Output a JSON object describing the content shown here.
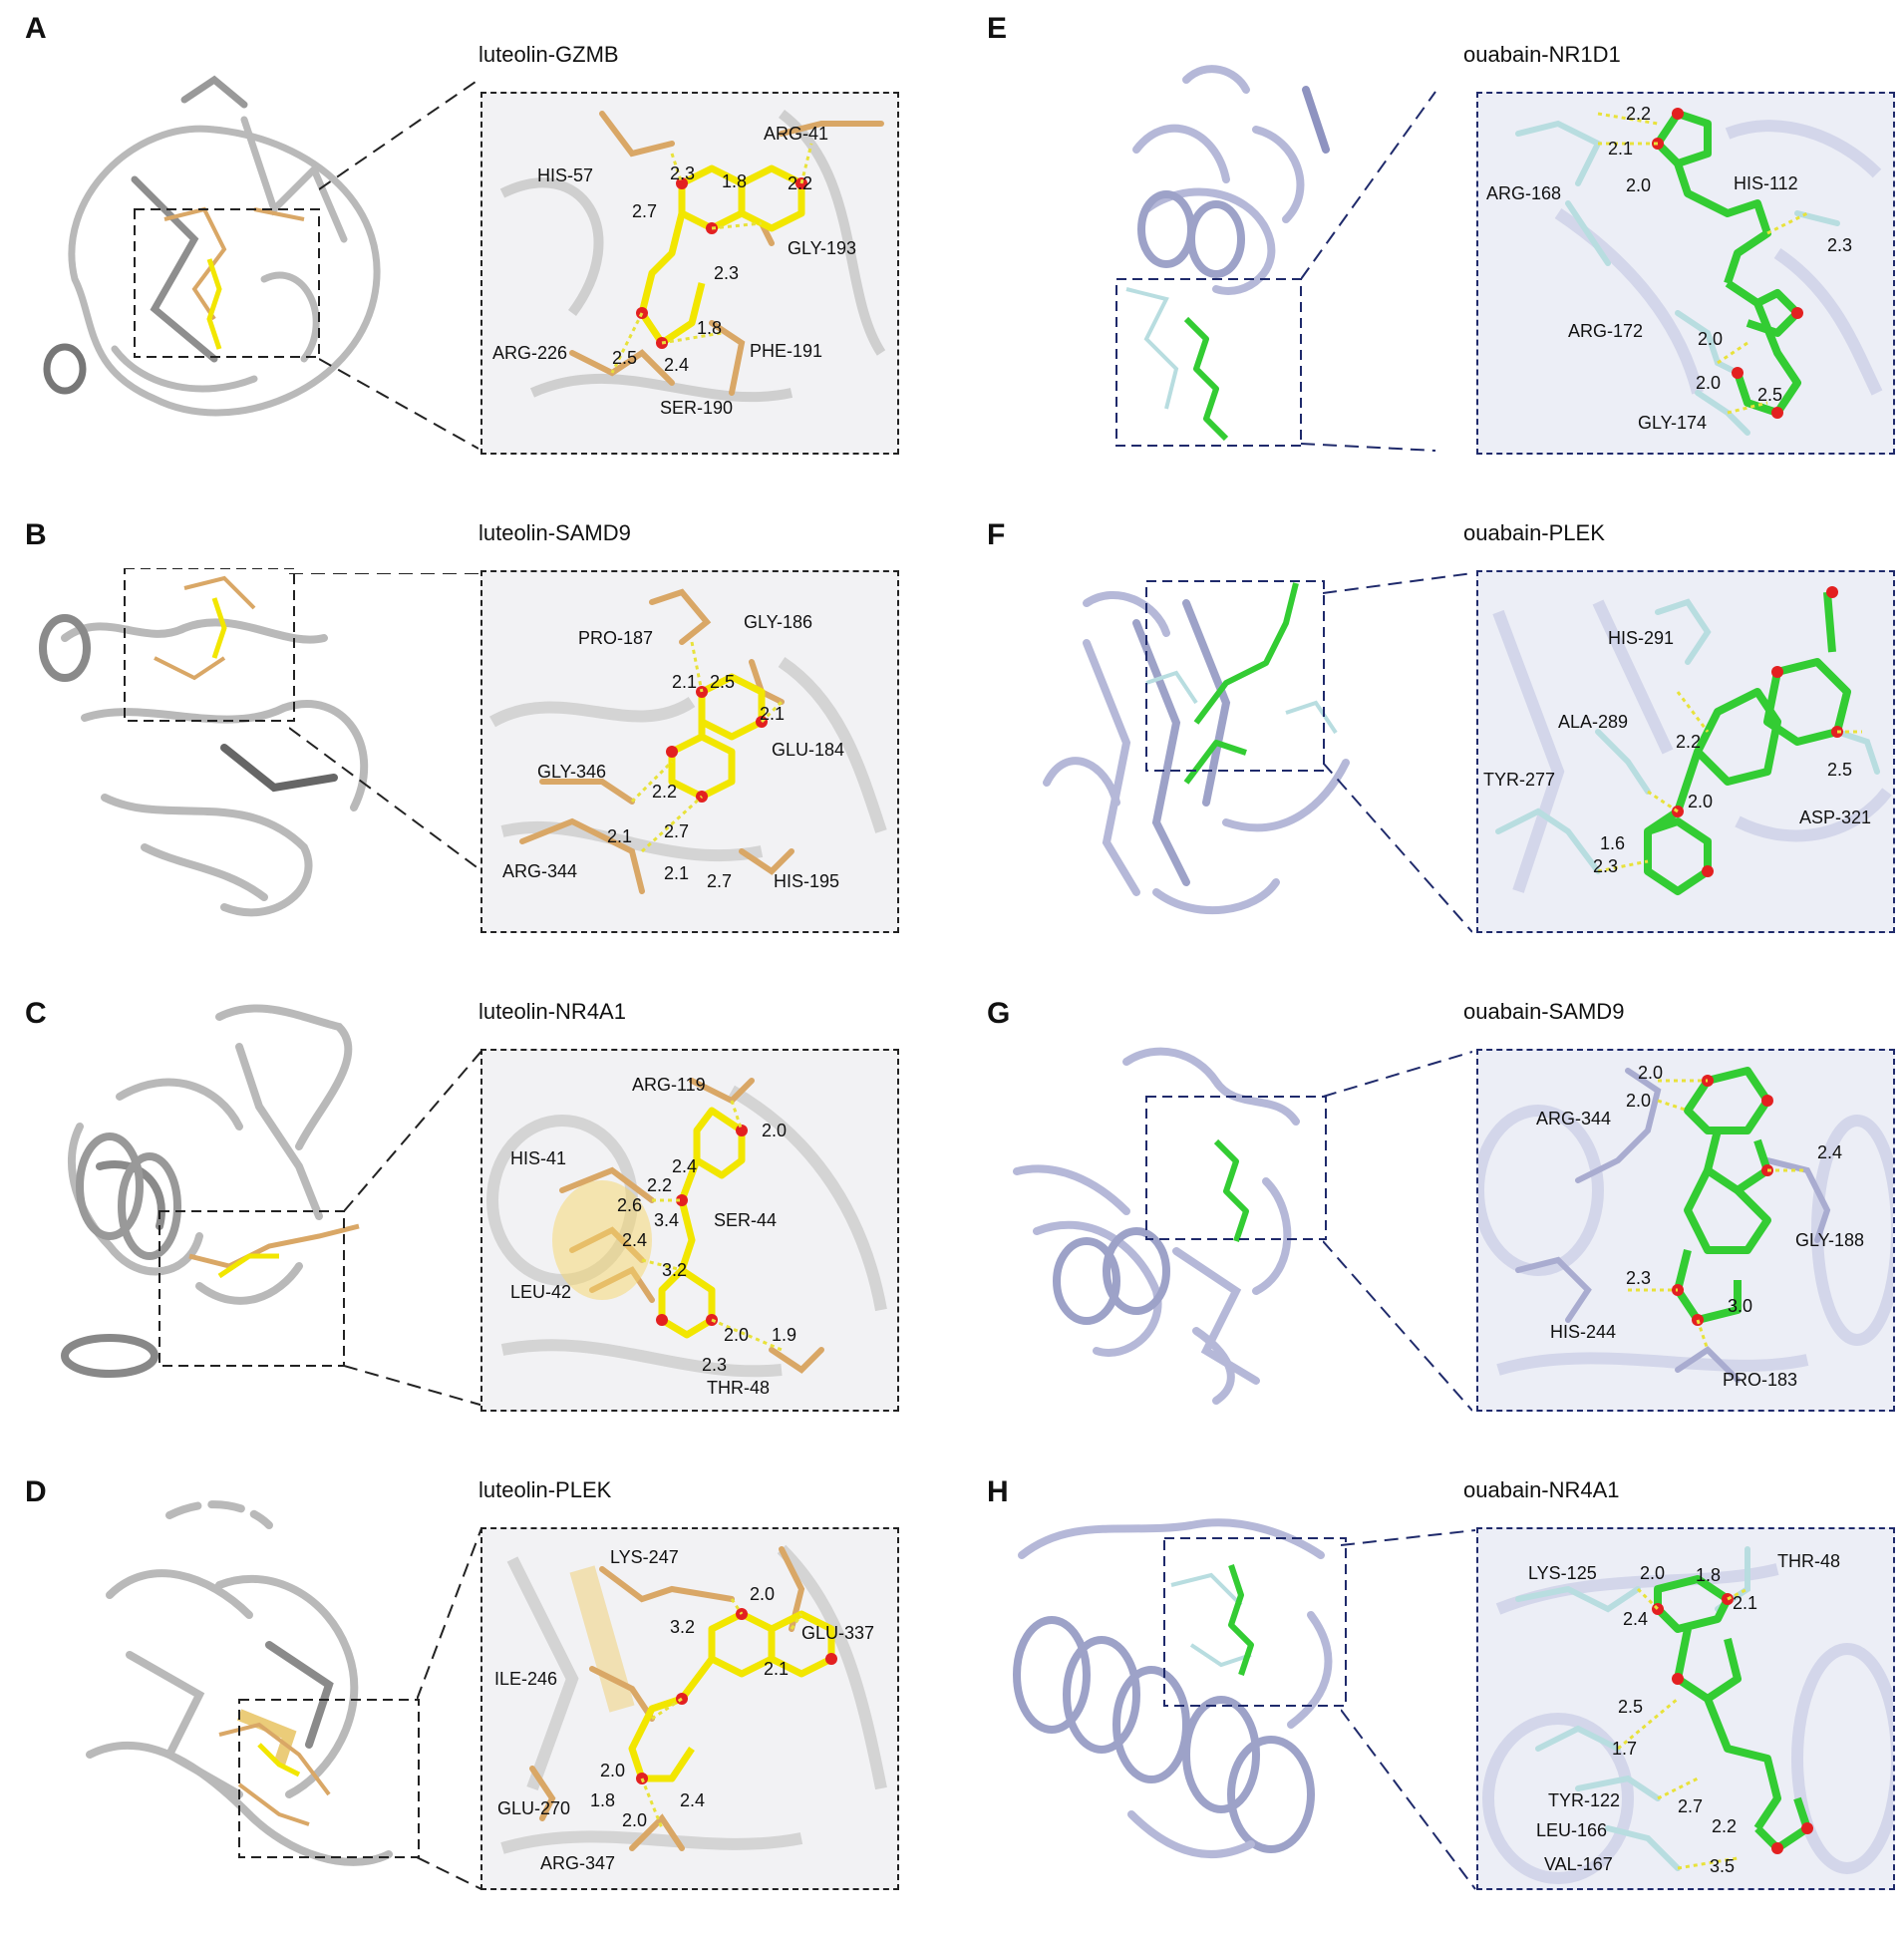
{
  "colors": {
    "luteolin_ligand": "#f2e600",
    "luteolin_residue": "#d9a766",
    "luteolin_protein": "#b9b9b9",
    "ouabain_ligand": "#33cc33",
    "ouabain_residue": "#b8dde0",
    "ouabain_protein": "#b5b8d8",
    "oxygen": "#e32020",
    "hbond": "#e8e23a",
    "luteolin_frame": "#222222",
    "ouabain_frame": "#1f2a6b"
  },
  "panels": [
    {
      "id": "A",
      "letter": "A",
      "title": "luteolin-GZMB",
      "ligand": "luteolin",
      "residues": [
        "HIS-57",
        "ARG-41",
        "GLY-193",
        "ARG-226",
        "PHE-191",
        "SER-190"
      ],
      "distances": [
        "2.3",
        "1.8",
        "2.2",
        "2.7",
        "2.3",
        "1.8",
        "2.5",
        "2.4"
      ]
    },
    {
      "id": "B",
      "letter": "B",
      "title": "luteolin-SAMD9",
      "ligand": "luteolin",
      "residues": [
        "PRO-187",
        "GLY-186",
        "GLU-184",
        "GLY-346",
        "ARG-344",
        "HIS-195"
      ],
      "distances": [
        "2.1",
        "2.5",
        "2.1",
        "2.2",
        "2.1",
        "2.7",
        "2.1",
        "2.7"
      ]
    },
    {
      "id": "C",
      "letter": "C",
      "title": "luteolin-NR4A1",
      "ligand": "luteolin",
      "residues": [
        "ARG-119",
        "HIS-41",
        "SER-44",
        "LEU-42",
        "THR-48"
      ],
      "distances": [
        "2.0",
        "2.4",
        "2.2",
        "2.6",
        "3.4",
        "2.4",
        "3.2",
        "2.0",
        "1.9",
        "2.3"
      ]
    },
    {
      "id": "D",
      "letter": "D",
      "title": "luteolin-PLEK",
      "ligand": "luteolin",
      "residues": [
        "LYS-247",
        "GLU-337",
        "ILE-246",
        "GLU-270",
        "ARG-347"
      ],
      "distances": [
        "2.0",
        "3.2",
        "2.1",
        "2.0",
        "1.8",
        "2.0",
        "2.4"
      ]
    },
    {
      "id": "E",
      "letter": "E",
      "title": "ouabain-NR1D1",
      "ligand": "ouabain",
      "residues": [
        "ARG-168",
        "HIS-112",
        "ARG-172",
        "GLY-174"
      ],
      "distances": [
        "2.2",
        "2.1",
        "2.0",
        "2.3",
        "2.0",
        "2.0",
        "2.5"
      ]
    },
    {
      "id": "F",
      "letter": "F",
      "title": "ouabain-PLEK",
      "ligand": "ouabain",
      "residues": [
        "HIS-291",
        "ALA-289",
        "TYR-277",
        "ASP-321"
      ],
      "distances": [
        "2.2",
        "2.5",
        "2.0",
        "1.6",
        "2.3"
      ]
    },
    {
      "id": "G",
      "letter": "G",
      "title": "ouabain-SAMD9",
      "ligand": "ouabain",
      "residues": [
        "ARG-344",
        "GLY-188",
        "HIS-244",
        "PRO-183"
      ],
      "distances": [
        "2.0",
        "2.0",
        "2.4",
        "2.3",
        "3.0"
      ]
    },
    {
      "id": "H",
      "letter": "H",
      "title": "ouabain-NR4A1",
      "ligand": "ouabain",
      "residues": [
        "LYS-125",
        "THR-48",
        "TYR-122",
        "LEU-166",
        "VAL-167"
      ],
      "distances": [
        "2.0",
        "1.8",
        "2.1",
        "2.4",
        "2.5",
        "1.7",
        "2.7",
        "2.2",
        "3.5"
      ]
    }
  ]
}
